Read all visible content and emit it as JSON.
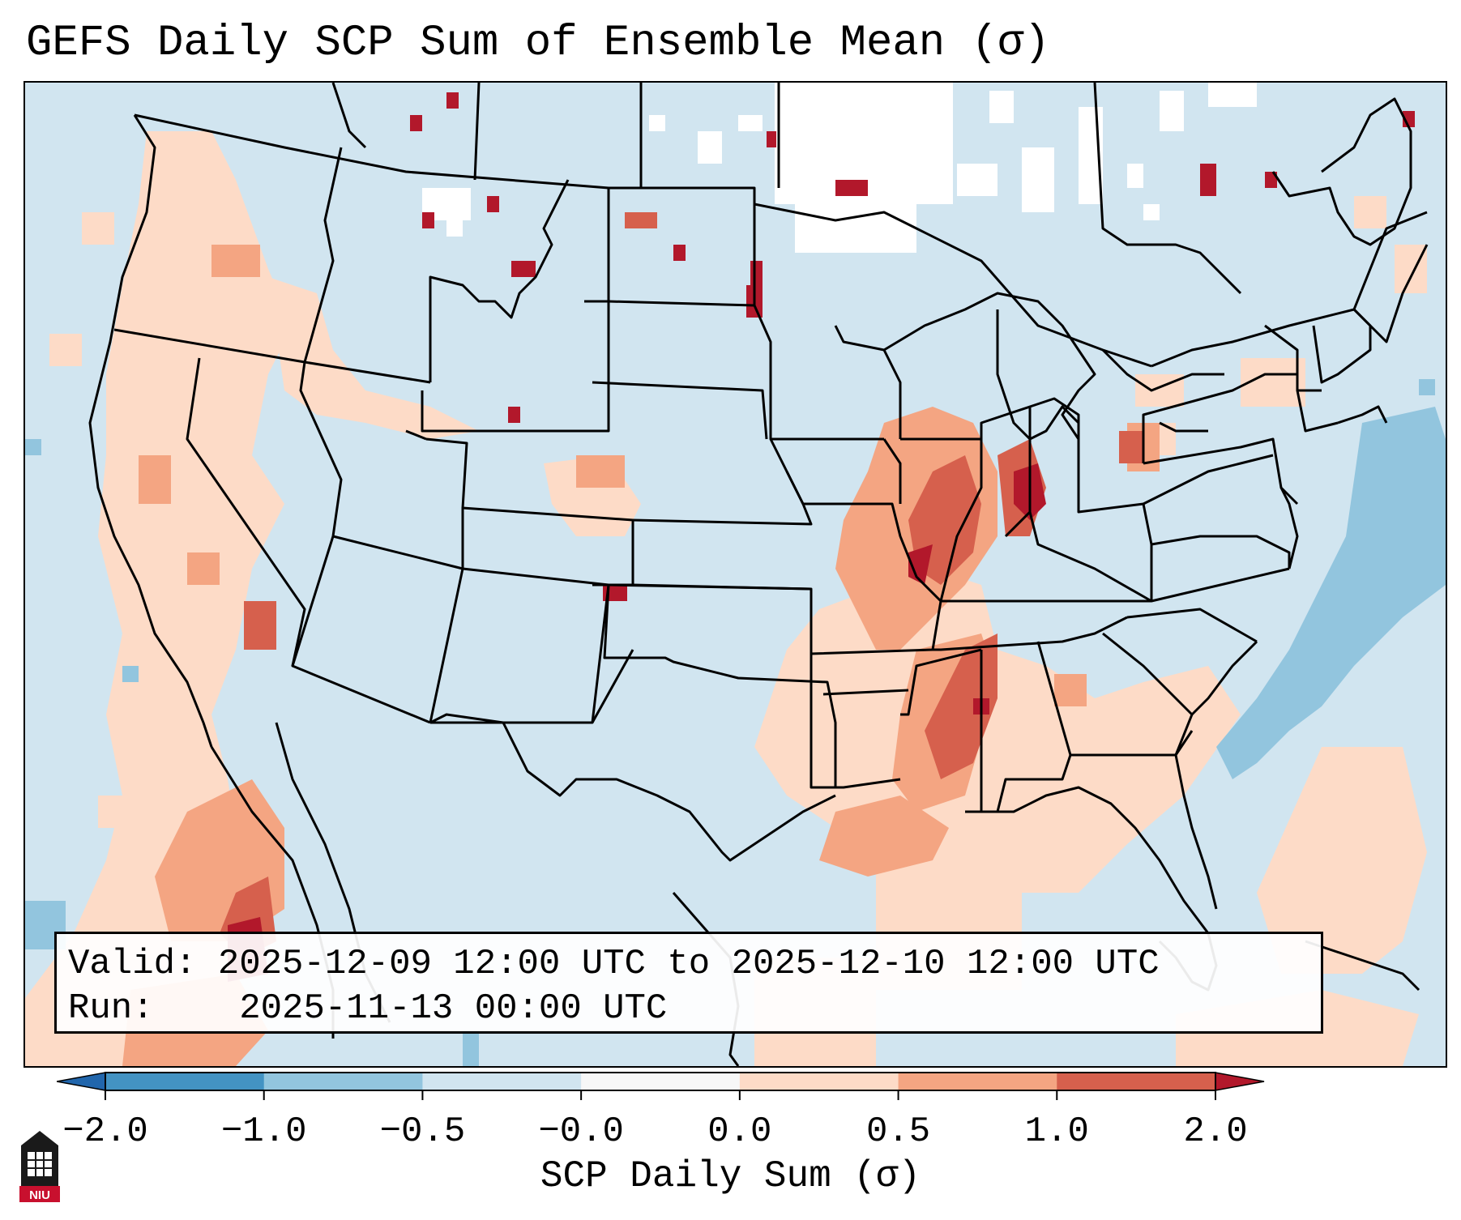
{
  "title": "GEFS Daily SCP Sum of Ensemble Mean (σ)",
  "info": {
    "valid_label": "Valid:",
    "valid_value": "2025-12-09 12:00 UTC to 2025-12-10 12:00 UTC",
    "run_label": "Run:",
    "run_value": "2025-11-13 00:00 UTC"
  },
  "colorbar": {
    "label": "SCP Daily Sum (σ)",
    "ticks": [
      "−2.0",
      "−1.0",
      "−0.5",
      "−0.0",
      "0.0",
      "0.5",
      "1.0",
      "2.0"
    ],
    "colors": [
      "#4393c3",
      "#92c5de",
      "#d1e5f0",
      "#f7f7f7",
      "#fddbc7",
      "#f4a582",
      "#d6604d"
    ],
    "under_color": "#2166ac",
    "over_color": "#b2182b"
  },
  "logo_text": "NIU",
  "map_colors": {
    "background": "#d1e5f0",
    "white_pixels": "#ffffff",
    "light_red": "#fddbc7",
    "medium_red": "#f4a582",
    "red": "#d6604d",
    "dark_red": "#b2182b",
    "light_blue": "#92c5de"
  }
}
